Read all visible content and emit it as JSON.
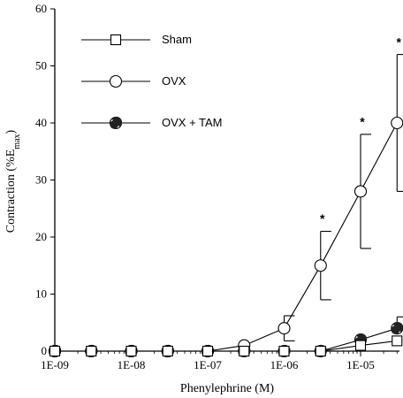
{
  "chart_data": {
    "type": "line",
    "xlabel": "Phenylephrine (M)",
    "ylabel_main": "Contraction (%E",
    "ylabel_sub": "max",
    "ylabel_close": ")",
    "xscale": "log",
    "xlim": [
      1e-09,
      4e-05
    ],
    "ylim": [
      0,
      60
    ],
    "yticks": [
      0,
      10,
      20,
      30,
      40,
      50,
      60
    ],
    "ytick_labels": [
      "0",
      "10",
      "20",
      "30",
      "40",
      "50",
      "60"
    ],
    "xticks": [
      1e-09,
      1e-08,
      1e-07,
      1e-06,
      1e-05
    ],
    "xtick_labels": [
      "1E-09",
      "1E-08",
      "1E-07",
      "1E-06",
      "1E-05"
    ],
    "grid": false,
    "legend_position": "top-left",
    "series": [
      {
        "name": "Sham",
        "marker": "open-square",
        "x": [
          1e-09,
          3e-09,
          1e-08,
          3e-08,
          1e-07,
          3e-07,
          1e-06,
          3e-06,
          1e-05,
          3e-05
        ],
        "y": [
          0,
          0,
          0,
          0,
          0,
          0,
          0,
          0,
          1,
          1.8
        ],
        "err": [
          0,
          0,
          0,
          0,
          0,
          0,
          0,
          0,
          0,
          0
        ]
      },
      {
        "name": "OVX",
        "marker": "open-circle",
        "x": [
          1e-09,
          3e-09,
          1e-08,
          3e-08,
          1e-07,
          3e-07,
          1e-06,
          3e-06,
          1e-05,
          3e-05
        ],
        "y": [
          0,
          0,
          0,
          0,
          0,
          1,
          4,
          15,
          28,
          40
        ],
        "err": [
          0,
          0,
          0,
          0,
          0,
          0,
          2.2,
          6,
          10,
          12
        ]
      },
      {
        "name": "OVX + TAM",
        "marker": "half-filled-circle",
        "x": [
          1e-09,
          3e-09,
          1e-08,
          3e-08,
          1e-07,
          3e-07,
          1e-06,
          3e-06,
          1e-05,
          3e-05
        ],
        "y": [
          0,
          0,
          0,
          0,
          0,
          0,
          0,
          0,
          2,
          4
        ],
        "err": [
          0,
          0,
          0,
          0,
          0,
          0,
          0,
          0,
          0,
          2
        ]
      }
    ],
    "annotations": [
      {
        "text": "*",
        "x": 3e-06,
        "y": 24
      },
      {
        "text": "*",
        "x": 1e-05,
        "y": 41
      },
      {
        "text": "*",
        "x": 3e-05,
        "y": 55
      }
    ]
  }
}
